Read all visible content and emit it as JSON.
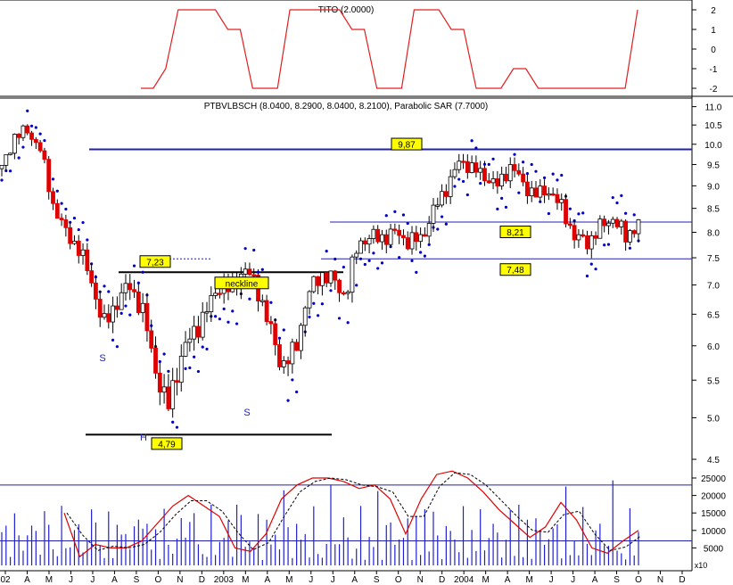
{
  "colors": {
    "background": "#ffffff",
    "frame": "#000000",
    "indicator_line": "#e02020",
    "candle_down": "#e00000",
    "candle_up": "#ffffff",
    "sar_dots": "#0000c8",
    "level_line": "#2020b0",
    "label_box": "#ffff00",
    "volume_bars": "#2020d0",
    "oscillator_main": "#e00000",
    "oscillator_signal": "#000000"
  },
  "top_panel": {
    "title": "TITO (2.0000)",
    "y_ticks": [
      "2",
      "1",
      "0",
      "-1",
      "-2"
    ]
  },
  "main_panel": {
    "title": "PTBVLBSCH (8.0400, 8.2900, 8.0400, 8.2100), Parabolic SAR (7.7000)",
    "y_ticks": [
      "11.0",
      "10.5",
      "10.0",
      "9.5",
      "9.0",
      "8.5",
      "8.0",
      "7.5",
      "7.0",
      "6.5",
      "6.0",
      "5.5",
      "5.0",
      "4.5"
    ],
    "labels": {
      "high_level": "9,87",
      "mid_level": "8,21",
      "low_level": "7,48",
      "neckline_level": "7,23",
      "neckline": "neckline",
      "head_level": "4,79",
      "shoulder_left": "S",
      "shoulder_right": "S",
      "head": "H"
    }
  },
  "volume_panel": {
    "y_ticks": [
      "25000",
      "20000",
      "15000",
      "10000",
      "5000"
    ],
    "unit_label": "x10"
  },
  "x_axis": {
    "labels": [
      "02",
      "A",
      "M",
      "J",
      "J",
      "A",
      "S",
      "O",
      "N",
      "D",
      "2003",
      "M",
      "A",
      "M",
      "J",
      "J",
      "A",
      "S",
      "O",
      "N",
      "D",
      "2004",
      "M",
      "A",
      "M",
      "J",
      "J",
      "A",
      "S",
      "O",
      "N",
      "D"
    ]
  },
  "chart_data": {
    "type": "candlestick",
    "ticker": "PTBVLBSCH",
    "last_ohlc": {
      "open": 8.04,
      "high": 8.29,
      "low": 8.04,
      "close": 8.21
    },
    "parabolic_sar_last": 7.7,
    "tito_last": 2.0,
    "y_axis_price_range": [
      4.4,
      11.1
    ],
    "annotated_levels": [
      9.87,
      8.21,
      7.48,
      7.23,
      4.79
    ],
    "tito_series": [
      -2,
      -2,
      -1,
      2,
      2,
      2,
      2,
      1,
      1,
      -2,
      -2,
      -2,
      2,
      2,
      2,
      2,
      2,
      1,
      1,
      -2,
      -2,
      -2,
      2,
      2,
      2,
      1,
      1,
      -2,
      -2,
      -2,
      -1,
      -1,
      -2,
      -2,
      -2,
      -2,
      -2,
      -2,
      -2,
      -2,
      2
    ],
    "price_series": [
      9.4,
      10.2,
      10.35,
      9.9,
      8.6,
      8.0,
      7.7,
      7.1,
      6.3,
      6.7,
      7.0,
      6.6,
      5.7,
      5.1,
      5.8,
      6.2,
      6.5,
      7.0,
      6.9,
      7.3,
      7.0,
      6.3,
      5.7,
      5.9,
      6.8,
      7.2,
      7.1,
      6.8,
      7.8,
      7.9,
      7.9,
      8.0,
      7.8,
      7.9,
      8.5,
      9.0,
      9.6,
      9.4,
      9.2,
      9.0,
      9.5,
      9.0,
      8.8,
      8.9,
      8.5,
      7.9,
      7.8,
      8.1,
      8.3,
      7.9,
      8.2
    ],
    "oscillator_range": [
      0,
      27000
    ],
    "oscillator_series": [
      15000,
      2500,
      6000,
      5000,
      5000,
      7000,
      12000,
      17000,
      20000,
      17000,
      14000,
      5000,
      4000,
      9000,
      19000,
      23000,
      25000,
      25000,
      24000,
      22000,
      23000,
      19000,
      9000,
      19000,
      26000,
      27000,
      25000,
      21000,
      16000,
      12000,
      8000,
      11000,
      18000,
      13000,
      5000,
      3500,
      7000,
      10000
    ]
  }
}
